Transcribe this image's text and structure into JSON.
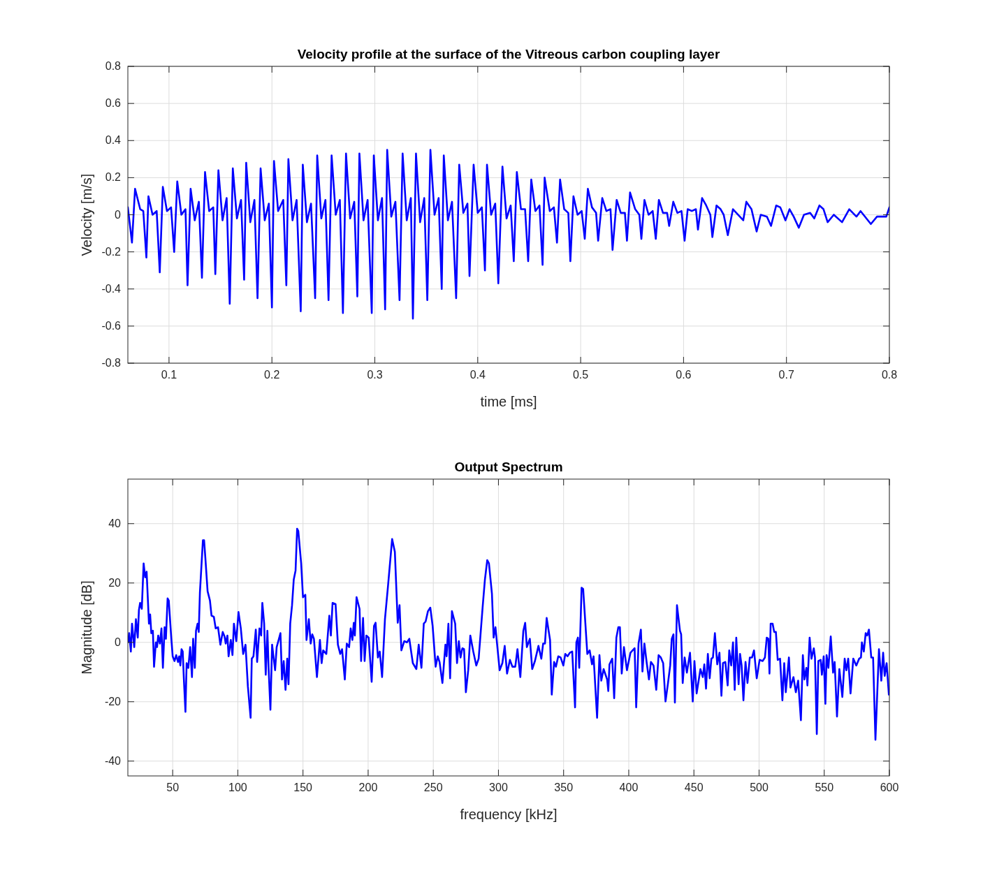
{
  "chart_data": [
    {
      "type": "line",
      "title": "Velocity profile at the surface of the Vitreous carbon coupling layer",
      "xlabel": "time [ms]",
      "ylabel": "Velocity [m/s]",
      "xlim": [
        0.06,
        0.8
      ],
      "xticks": [
        0.1,
        0.2,
        0.3,
        0.4,
        0.5,
        0.6,
        0.7,
        0.8
      ],
      "ylim": [
        -0.8,
        0.8
      ],
      "yticks": [
        -0.8,
        -0.6,
        -0.4,
        -0.2,
        0,
        0.2,
        0.4,
        0.6,
        0.8
      ],
      "grid": true,
      "series": [
        {
          "color": "#0000ff",
          "x": [
            0.06,
            0.064,
            0.067,
            0.072,
            0.075,
            0.078,
            0.08,
            0.084,
            0.088,
            0.091,
            0.094,
            0.098,
            0.102,
            0.105,
            0.108,
            0.112,
            0.116,
            0.118,
            0.121,
            0.125,
            0.129,
            0.132,
            0.135,
            0.139,
            0.143,
            0.145,
            0.148,
            0.152,
            0.156,
            0.159,
            0.162,
            0.166,
            0.17,
            0.173,
            0.175,
            0.179,
            0.183,
            0.186,
            0.189,
            0.193,
            0.197,
            0.2,
            0.202,
            0.206,
            0.211,
            0.214,
            0.216,
            0.22,
            0.224,
            0.228,
            0.23,
            0.234,
            0.238,
            0.242,
            0.244,
            0.248,
            0.252,
            0.255,
            0.258,
            0.262,
            0.266,
            0.269,
            0.272,
            0.276,
            0.28,
            0.283,
            0.285,
            0.289,
            0.293,
            0.297,
            0.299,
            0.303,
            0.307,
            0.31,
            0.312,
            0.316,
            0.32,
            0.324,
            0.327,
            0.331,
            0.335,
            0.337,
            0.34,
            0.344,
            0.348,
            0.351,
            0.354,
            0.358,
            0.362,
            0.365,
            0.367,
            0.371,
            0.375,
            0.379,
            0.382,
            0.386,
            0.39,
            0.392,
            0.396,
            0.4,
            0.404,
            0.407,
            0.409,
            0.413,
            0.417,
            0.42,
            0.424,
            0.428,
            0.432,
            0.435,
            0.438,
            0.442,
            0.446,
            0.449,
            0.452,
            0.456,
            0.46,
            0.463,
            0.465,
            0.47,
            0.474,
            0.477,
            0.48,
            0.484,
            0.488,
            0.49,
            0.493,
            0.497,
            0.501,
            0.504,
            0.507,
            0.511,
            0.515,
            0.517,
            0.521,
            0.525,
            0.529,
            0.531,
            0.535,
            0.539,
            0.543,
            0.545,
            0.548,
            0.553,
            0.557,
            0.559,
            0.562,
            0.566,
            0.57,
            0.573,
            0.576,
            0.58,
            0.584,
            0.586,
            0.59,
            0.594,
            0.598,
            0.601,
            0.604,
            0.608,
            0.612,
            0.614,
            0.618,
            0.622,
            0.626,
            0.628,
            0.632,
            0.636,
            0.639,
            0.643,
            0.648,
            0.658,
            0.661,
            0.666,
            0.671,
            0.675,
            0.681,
            0.685,
            0.69,
            0.694,
            0.699,
            0.703,
            0.707,
            0.712,
            0.717,
            0.723,
            0.727,
            0.732,
            0.736,
            0.74,
            0.746,
            0.754,
            0.761,
            0.768,
            0.772,
            0.782,
            0.788,
            0.797,
            0.8
          ],
          "values": [
            0.04,
            -0.15,
            0.14,
            0.03,
            0.02,
            -0.23,
            0.1,
            0.0,
            0.02,
            -0.31,
            0.15,
            0.02,
            0.04,
            -0.2,
            0.18,
            0.0,
            0.03,
            -0.38,
            0.14,
            -0.03,
            0.07,
            -0.34,
            0.23,
            0.02,
            0.04,
            -0.32,
            0.24,
            -0.03,
            0.09,
            -0.48,
            0.25,
            -0.02,
            0.08,
            -0.35,
            0.28,
            -0.04,
            0.08,
            -0.45,
            0.25,
            -0.03,
            0.06,
            -0.5,
            0.29,
            0.02,
            0.08,
            -0.38,
            0.3,
            -0.03,
            0.08,
            -0.52,
            0.27,
            -0.04,
            0.06,
            -0.45,
            0.32,
            -0.02,
            0.08,
            -0.46,
            0.32,
            0.0,
            0.08,
            -0.53,
            0.33,
            -0.02,
            0.07,
            -0.44,
            0.33,
            -0.03,
            0.08,
            -0.53,
            0.32,
            -0.03,
            0.09,
            -0.51,
            0.35,
            -0.01,
            0.07,
            -0.46,
            0.33,
            -0.03,
            0.09,
            -0.56,
            0.33,
            -0.04,
            0.09,
            -0.46,
            0.35,
            0.0,
            0.09,
            -0.4,
            0.32,
            -0.03,
            0.07,
            -0.45,
            0.27,
            0.01,
            0.06,
            -0.33,
            0.27,
            0.01,
            0.04,
            -0.3,
            0.27,
            0.0,
            0.06,
            -0.37,
            0.26,
            -0.02,
            0.05,
            -0.25,
            0.23,
            0.03,
            0.03,
            -0.25,
            0.19,
            0.02,
            0.05,
            -0.27,
            0.2,
            0.02,
            0.04,
            -0.15,
            0.19,
            0.03,
            0.01,
            -0.25,
            0.1,
            0.0,
            0.02,
            -0.13,
            0.14,
            0.04,
            0.01,
            -0.14,
            0.09,
            0.02,
            0.03,
            -0.19,
            0.08,
            0.01,
            0.01,
            -0.14,
            0.12,
            0.03,
            0.0,
            -0.13,
            0.08,
            0.0,
            0.02,
            -0.13,
            0.08,
            0.01,
            0.01,
            -0.06,
            0.07,
            0.01,
            0.02,
            -0.14,
            0.03,
            0.02,
            0.03,
            -0.08,
            0.09,
            0.05,
            0.0,
            -0.12,
            0.05,
            0.03,
            0.0,
            -0.11,
            0.03,
            -0.03,
            0.07,
            0.03,
            -0.09,
            0.0,
            -0.01,
            -0.06,
            0.05,
            0.04,
            -0.03,
            0.03,
            -0.01,
            -0.07,
            0.0,
            0.01,
            -0.02,
            0.05,
            0.03,
            -0.04,
            0.0,
            -0.04,
            0.03,
            -0.01,
            0.02,
            -0.05,
            -0.01,
            -0.01,
            0.04
          ]
        }
      ]
    },
    {
      "type": "line",
      "title": "Output Spectrum",
      "xlabel": "frequency [kHz]",
      "ylabel": "Magnitude [dB]",
      "xlim": [
        15.6,
        600
      ],
      "xticks": [
        50,
        100,
        150,
        200,
        250,
        300,
        350,
        400,
        450,
        500,
        550,
        600
      ],
      "ylim": [
        -45,
        55
      ],
      "yticks": [
        -40,
        -20,
        0,
        20,
        40
      ],
      "grid": true,
      "series": [
        {
          "color": "#0000ff",
          "x": [
            15.7,
            16.6,
            17.9,
            18.8,
            20.5,
            21.8,
            23.2,
            24.1,
            25,
            26.3,
            27.7,
            28.9,
            30,
            31.8,
            32.7,
            33.6,
            34.8,
            35.7,
            37.1,
            38,
            38.9,
            40.2,
            41.4,
            42.5,
            43.8,
            44.8,
            46.1,
            47,
            49.1,
            50,
            51.4,
            52.7,
            54.1,
            55,
            55.9,
            56.8,
            57.7,
            58.6,
            59.8,
            60.7,
            62,
            63.4,
            64.8,
            65.7,
            67,
            67.9,
            69.1,
            70,
            70.9,
            73.2,
            74.1,
            75,
            76.8,
            78.6,
            79.8,
            81.6,
            83,
            84.8,
            86.6,
            88.4,
            89.8,
            90.7,
            92,
            92.9,
            94.6,
            95.9,
            97,
            98.8,
            100.5,
            102.3,
            104.1,
            105.9,
            107.7,
            109.8,
            110.7,
            112,
            113.8,
            114.8,
            116.6,
            117.9,
            118.8,
            120.2,
            121.4,
            122.7,
            123.6,
            125,
            126.3,
            128.6,
            129.8,
            131.3,
            132.7,
            133.9,
            135.2,
            136.6,
            137.9,
            138.9,
            140.2,
            141.6,
            142.9,
            144.3,
            145.5,
            146.4,
            148.6,
            150,
            151.8,
            152.7,
            154.5,
            155.9,
            157.1,
            158.4,
            160.7,
            163,
            164.3,
            165.5,
            167.9,
            170.2,
            171.4,
            172.7,
            175,
            176.8,
            178.6,
            180,
            182.1,
            183.6,
            185.4,
            186.6,
            187.9,
            189,
            189.8,
            191.1,
            193.4,
            194.6,
            196.1,
            197.3,
            198.6,
            200.4,
            202.7,
            204.5,
            205.7,
            207.5,
            208.9,
            210.7,
            212.9,
            215.2,
            218.4,
            220.5,
            222.7,
            224.1,
            225.5,
            227.7,
            229.8,
            231.6,
            232.5,
            234.3,
            237,
            238.8,
            240.9,
            242.7,
            244.1,
            245.9,
            247.7,
            249.5,
            251.8,
            253.4,
            254.8,
            257,
            259.3,
            260.2,
            261.6,
            262.9,
            264.3,
            266.8,
            268.2,
            269.6,
            270.9,
            272.3,
            273.6,
            275,
            276.8,
            278.4,
            280.7,
            283,
            284.8,
            287.9,
            289.6,
            291.4,
            292.7,
            295,
            296.3,
            297.7,
            300.9,
            303,
            304.8,
            306.6,
            308.8,
            310.7,
            312.9,
            314.6,
            316.8,
            319.1,
            320.5,
            321.8,
            324.1,
            325.9,
            328,
            330.7,
            332.9,
            334.3,
            335.7,
            337,
            339.6,
            340.9,
            342.7,
            344.1,
            345.9,
            347.7,
            349.8,
            351.3,
            353,
            354.8,
            356.6,
            358.8,
            359.8,
            361,
            362,
            363.8,
            365,
            368.2,
            370,
            371.8,
            373,
            375.7,
            377.5,
            378.9,
            380.7,
            383.4,
            384.3,
            385.2,
            387.3,
            388.8,
            390.5,
            392,
            393.2,
            394.6,
            396.3,
            398.6,
            401.3,
            403,
            404.5,
            405.7,
            407.5,
            409.3,
            410.5,
            412,
            413.8,
            415.5,
            417,
            419,
            421.1,
            422.9,
            424.6,
            426.4,
            428.2,
            430,
            431.8,
            433,
            434.3,
            435.4,
            437,
            439.3,
            440.2,
            441.4,
            442.9,
            444.6,
            447,
            449.1,
            450.4,
            452.1,
            455,
            456.8,
            458,
            459.3,
            460.7,
            462.1,
            463.4,
            464.6,
            466.1,
            467.9,
            469.6,
            471.1,
            472.3,
            474.1,
            475.9,
            477.1,
            478.6,
            480,
            481.3,
            482.5,
            484.3,
            485.4,
            486.6,
            488,
            489.6,
            491.1,
            492.9,
            494.6,
            496.1,
            498.2,
            500.4,
            502.7,
            504.5,
            505.9,
            507.1,
            508,
            508.9,
            510.4,
            511.6,
            512.9,
            514.3,
            516.1,
            517.9,
            519.3,
            520.5,
            522.9,
            524.1,
            526.4,
            528.2,
            530,
            532.1,
            533.6,
            534.8,
            536.3,
            537.1,
            538.8,
            540.2,
            542,
            542.9,
            544.3,
            545.5,
            547.3,
            548.2,
            549.6,
            550.9,
            551.8,
            553.2,
            555,
            556.8,
            558,
            559.8,
            561.6,
            563.9,
            565.7,
            567,
            568.4,
            570.2,
            572.3,
            574.6,
            576.8,
            578.2,
            578.9,
            580.4,
            581.8,
            583,
            584.3,
            586.1,
            587.5,
            589.3,
            592,
            593.8,
            595.2,
            596.4,
            597.9,
            599.6
          ],
          "values": [
            0,
            3.1,
            -3.1,
            6.3,
            -1.6,
            7.8,
            1.6,
            10.9,
            13.3,
            11.3,
            26.6,
            21.9,
            23.8,
            6.3,
            9.4,
            3.1,
            3.9,
            -8.2,
            0,
            -1.6,
            2.3,
            -0.4,
            4.7,
            -8.6,
            5.1,
            1.2,
            14.8,
            14.1,
            0.4,
            -4.7,
            -6.3,
            -4.3,
            -6.6,
            -4.7,
            -7.8,
            -2.3,
            -3.1,
            -12.5,
            -23.4,
            -7,
            -8.6,
            -1.6,
            -11.7,
            1.2,
            -8.6,
            3.9,
            6.3,
            3.5,
            16.8,
            34.4,
            34.4,
            28.9,
            17.2,
            14.1,
            9,
            8.6,
            4.7,
            5.1,
            -0.8,
            3.5,
            2,
            -0.4,
            2.3,
            -4.7,
            0.8,
            -4.3,
            6.3,
            0.4,
            10.2,
            4.7,
            -3.9,
            -0.8,
            -14.8,
            -25.4,
            -5.5,
            -4.7,
            4.3,
            -6.6,
            4.7,
            2.3,
            13.3,
            6.3,
            -10.9,
            3.9,
            -8.6,
            -22.7,
            -0.8,
            -9.4,
            -1.6,
            0.8,
            3.1,
            -12.5,
            -6.3,
            -16,
            -5.5,
            -14.1,
            6.3,
            12.5,
            21.1,
            24.2,
            38.3,
            37.5,
            26.6,
            15.2,
            16,
            0.8,
            7.8,
            -0.4,
            2.7,
            1.2,
            -11.7,
            0.8,
            -7,
            -2.7,
            -3.9,
            9,
            2.3,
            13.3,
            12.9,
            -0.8,
            -3.9,
            -2.3,
            -12.5,
            -0.4,
            -1.6,
            4.7,
            0.8,
            6.6,
            2.3,
            15.2,
            11.3,
            -6.3,
            8.2,
            -6.3,
            2.3,
            1.6,
            -13.3,
            5.5,
            6.6,
            -5.1,
            -3.1,
            -11.7,
            7.8,
            18.8,
            34.8,
            30.5,
            6.6,
            12.5,
            -2.7,
            0.4,
            0,
            1.2,
            -1.6,
            -7,
            -9,
            -0.8,
            -8.6,
            6.3,
            7,
            10.5,
            11.7,
            5.5,
            -8.2,
            -4.7,
            -6.6,
            -13.7,
            -0.8,
            -4.7,
            6.3,
            -12.1,
            10.5,
            6.3,
            -7,
            0.4,
            -5.1,
            -2,
            -2.3,
            -16.8,
            -9.4,
            2.3,
            -3.1,
            -7.8,
            -5.5,
            12.1,
            21.1,
            27.7,
            26.6,
            16.4,
            1.6,
            5.1,
            -9.4,
            -7,
            -1.2,
            -10.5,
            -5.9,
            -8.2,
            -8.2,
            -2.3,
            -11.7,
            3.9,
            6.6,
            -1.6,
            1.2,
            -9,
            -6.3,
            -1.2,
            -5.5,
            -0.4,
            -0.4,
            8.2,
            0.8,
            -17.6,
            -6.6,
            -8.2,
            -4.7,
            -5.1,
            -7.8,
            -3.9,
            -4.7,
            -3.5,
            -3.1,
            -21.9,
            0,
            1.6,
            -8.6,
            18.4,
            18,
            -3.9,
            -2.7,
            -7.4,
            -4.7,
            -25.4,
            -4.3,
            -12.9,
            -9,
            -12.5,
            -16.4,
            -7.4,
            -5.5,
            -18.8,
            1.6,
            5.1,
            5.1,
            -10.5,
            -1.6,
            -9.4,
            -3.5,
            -2.7,
            -2,
            -21.9,
            -0.4,
            4.3,
            -9.8,
            -0.4,
            -7,
            -12.5,
            -6.6,
            -7.8,
            -16,
            -4.3,
            -5.1,
            -7,
            -19.9,
            -14.1,
            -7.8,
            1.2,
            2.7,
            -20.3,
            12.5,
            3.9,
            2.7,
            -13.7,
            -5.1,
            -10.2,
            -3.5,
            -19.9,
            -6.3,
            -17.2,
            -9,
            -11.7,
            -7.4,
            -15.6,
            -3.9,
            -12.1,
            -5.5,
            -5.1,
            3.1,
            -7.4,
            -3.5,
            -18,
            -7,
            -6.6,
            -14.5,
            -2.7,
            -7.8,
            0,
            -16,
            1.6,
            -14.1,
            -3.9,
            -7.8,
            -19.5,
            -6.6,
            -13.7,
            -5.1,
            -5.1,
            -2.7,
            -12.1,
            -5.9,
            -6.3,
            -5.1,
            1.6,
            1.2,
            -10.5,
            6.3,
            6.3,
            3.5,
            3.5,
            -5.9,
            -5.5,
            -19.5,
            -7,
            -16.8,
            -5.1,
            -15.2,
            -11.7,
            -16.8,
            -12.9,
            -26.2,
            -4.3,
            -12.5,
            -8.6,
            -14.5,
            1.6,
            -5.5,
            -2,
            -5.1,
            -30.9,
            -6.3,
            -5.9,
            -10.9,
            -4.7,
            -20.7,
            -4.3,
            -8.6,
            2,
            -10.2,
            -6.6,
            -25,
            -9,
            -18.4,
            -5.5,
            -9.4,
            -5.5,
            -17.2,
            -5.5,
            -7.8,
            -5.5,
            -5.1,
            0,
            -3.1,
            3.1,
            2.3,
            4.3,
            -5.1,
            -5.1,
            -32.8,
            -2.3,
            -12.9,
            -3.5,
            -11.3,
            -7,
            -17.6
          ]
        }
      ]
    }
  ]
}
